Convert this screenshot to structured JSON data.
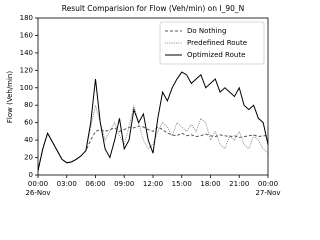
{
  "chart_data": {
    "type": "line",
    "title": "Result Comparision for Flow (Veh/min) on I_90_N",
    "y_label": "Flow (Veh/min)",
    "x": [
      0,
      0.5,
      1,
      1.5,
      2,
      2.5,
      3,
      3.5,
      4,
      4.5,
      5,
      5.5,
      6,
      6.5,
      7,
      7.5,
      8,
      8.5,
      9,
      9.5,
      10,
      10.5,
      11,
      11.5,
      12,
      12.5,
      13,
      13.5,
      14,
      14.5,
      15,
      15.5,
      16,
      16.5,
      17,
      17.5,
      18,
      18.5,
      19,
      19.5,
      20,
      20.5,
      21,
      21.5,
      22,
      22.5,
      23,
      23.5,
      24
    ],
    "series": [
      {
        "name": "Do Nothing",
        "color": "#555555",
        "dash": "3,2",
        "values": [
          5,
          30,
          48,
          38,
          28,
          18,
          14,
          15,
          18,
          22,
          28,
          40,
          50,
          52,
          50,
          52,
          54,
          50,
          52,
          55,
          54,
          56,
          55,
          52,
          50,
          55,
          52,
          48,
          46,
          45,
          48,
          45,
          46,
          44,
          45,
          47,
          45,
          44,
          46,
          45,
          44,
          45,
          43,
          44,
          45,
          46,
          44,
          45,
          45
        ]
      },
      {
        "name": "Predefined Route",
        "color": "#888888",
        "dash": "1,1.2",
        "values": [
          5,
          30,
          48,
          38,
          28,
          18,
          14,
          15,
          18,
          22,
          28,
          55,
          80,
          60,
          40,
          50,
          60,
          45,
          35,
          55,
          80,
          60,
          40,
          30,
          35,
          50,
          60,
          55,
          45,
          60,
          55,
          50,
          58,
          50,
          65,
          60,
          40,
          50,
          35,
          30,
          45,
          40,
          50,
          35,
          30,
          45,
          40,
          30,
          25
        ]
      },
      {
        "name": "Optimized Route",
        "color": "#000000",
        "dash": "",
        "values": [
          5,
          30,
          48,
          38,
          28,
          18,
          14,
          15,
          18,
          22,
          28,
          60,
          110,
          60,
          30,
          20,
          40,
          65,
          30,
          40,
          75,
          60,
          70,
          40,
          25,
          65,
          95,
          85,
          100,
          110,
          118,
          115,
          105,
          110,
          115,
          100,
          105,
          110,
          95,
          100,
          95,
          90,
          100,
          80,
          75,
          80,
          65,
          60,
          35
        ]
      }
    ],
    "xlim": [
      0,
      24
    ],
    "xticks": [
      {
        "value": 0,
        "label": "00:00"
      },
      {
        "value": 3,
        "label": "03:00"
      },
      {
        "value": 6,
        "label": "06:00"
      },
      {
        "value": 9,
        "label": "09:00"
      },
      {
        "value": 12,
        "label": "12:00"
      },
      {
        "value": 15,
        "label": "15:00"
      },
      {
        "value": 18,
        "label": "18:00"
      },
      {
        "value": 21,
        "label": "21:00"
      },
      {
        "value": 24,
        "label": "00:00"
      }
    ],
    "xtick_dates": [
      {
        "value": 0,
        "label": "26-Nov"
      },
      {
        "value": 24,
        "label": "27-Nov"
      }
    ],
    "ylim": [
      0,
      180
    ],
    "yticks": [
      0,
      20,
      40,
      60,
      80,
      100,
      120,
      140,
      160,
      180
    ],
    "legend": "upper right"
  }
}
